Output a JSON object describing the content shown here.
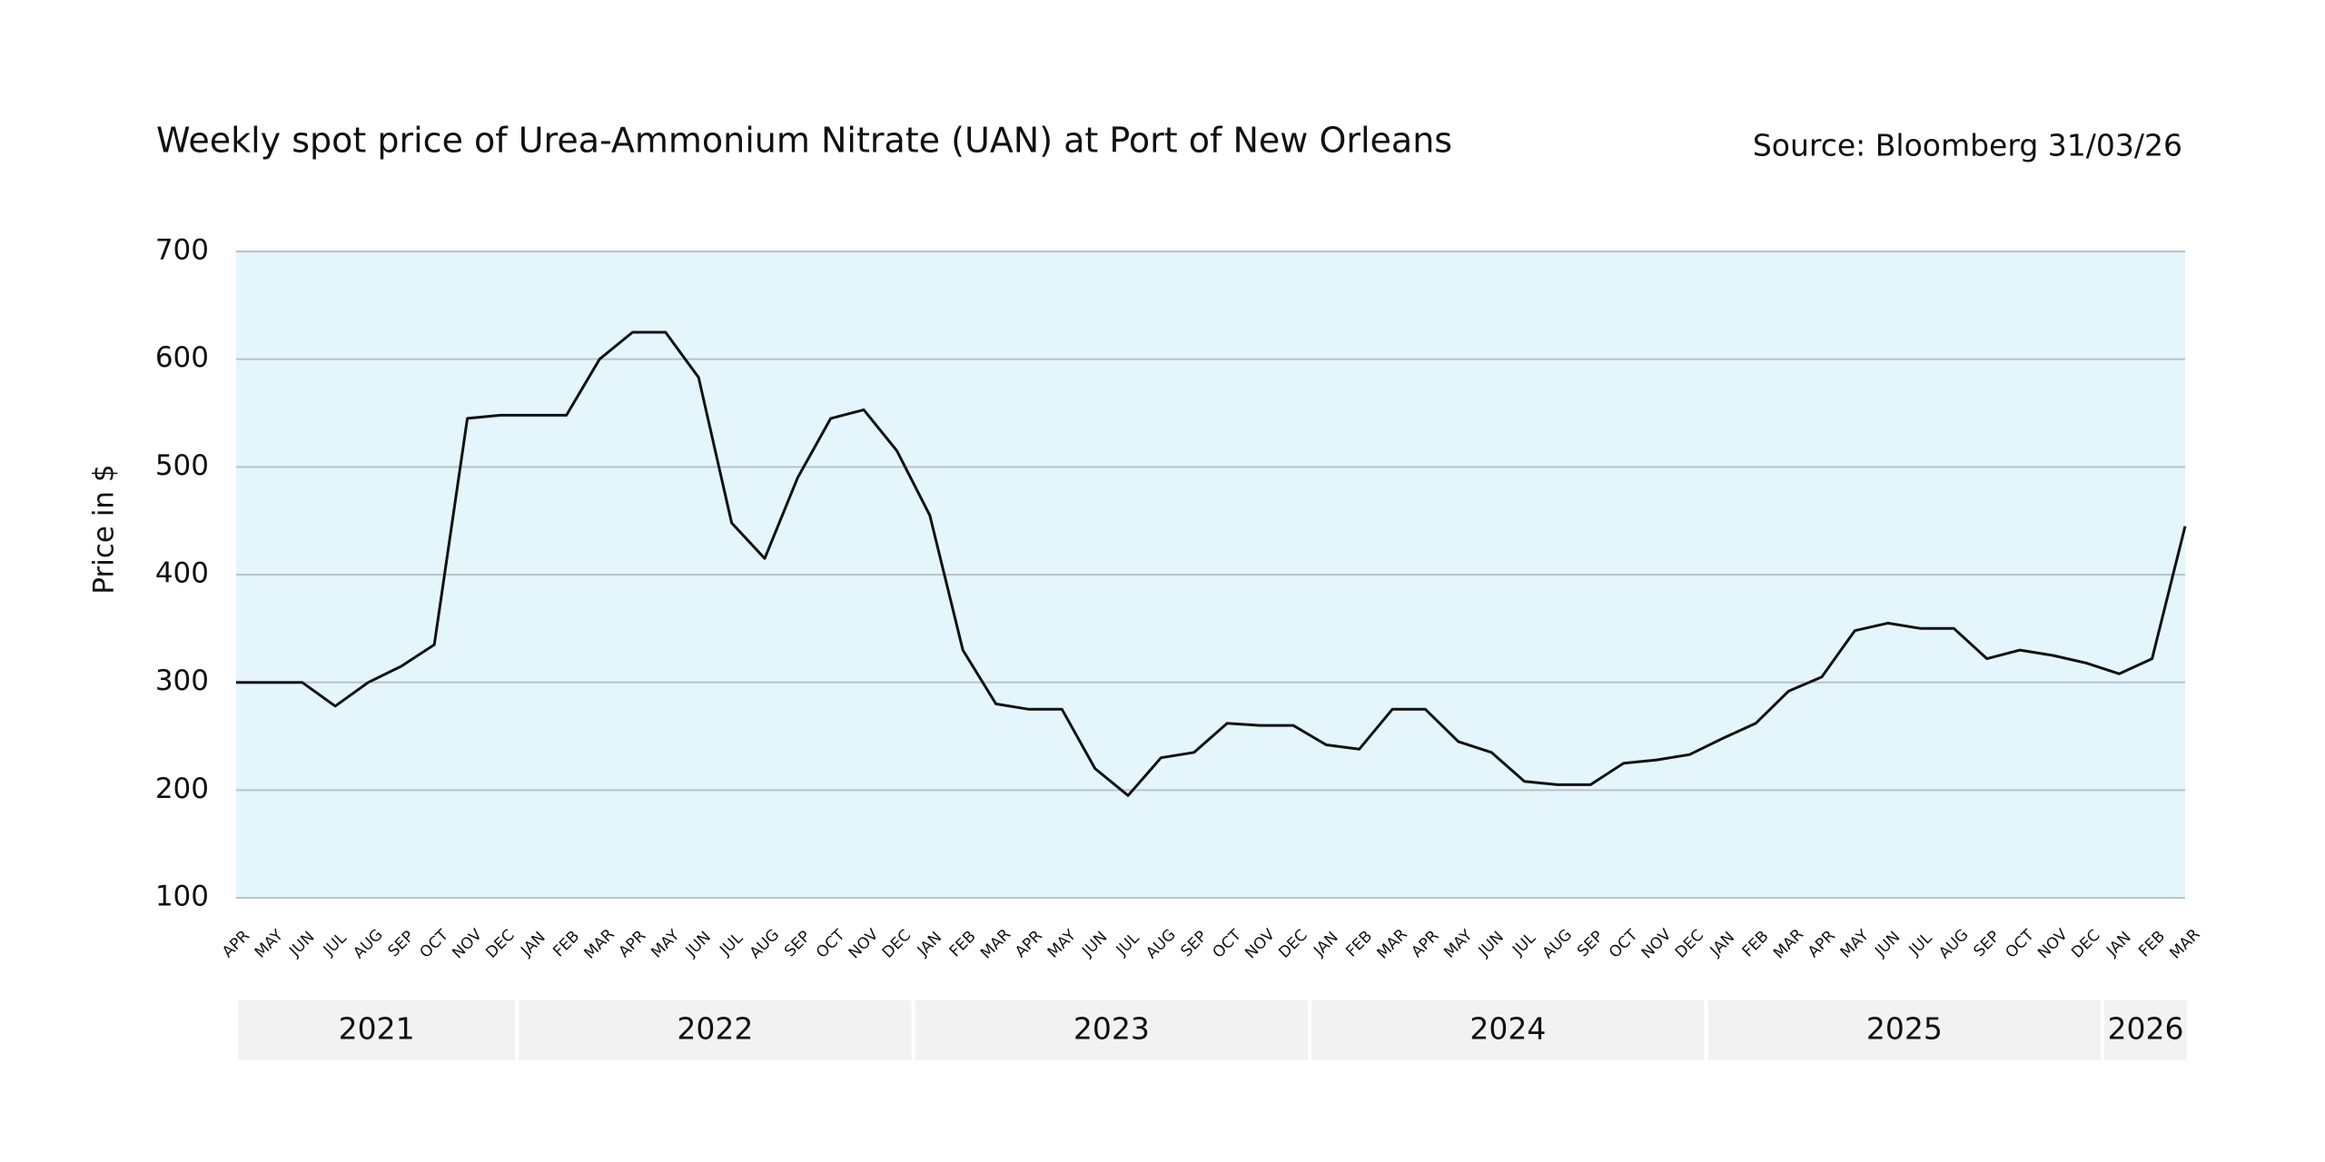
{
  "chart_data": {
    "type": "line",
    "title": "Weekly spot price of Urea-Ammonium Nitrate (UAN) at Port of New Orleans",
    "source": "Source: Bloomberg 31/03/26",
    "y_label": "Price in $",
    "categories": [
      "APR",
      "MAY",
      "JUN",
      "JUL",
      "AUG",
      "SEP",
      "OCT",
      "NOV",
      "DEC",
      "JAN",
      "FEB",
      "MAR",
      "APR",
      "MAY",
      "JUN",
      "JUL",
      "AUG",
      "SEP",
      "OCT",
      "NOV",
      "DEC",
      "JAN",
      "FEB",
      "MAR",
      "APR",
      "MAY",
      "JUN",
      "JUL",
      "AUG",
      "SEP",
      "OCT",
      "NOV",
      "DEC",
      "JAN",
      "FEB",
      "MAR",
      "APR",
      "MAY",
      "JUN",
      "JUL",
      "AUG",
      "SEP",
      "OCT",
      "NOV",
      "DEC",
      "JAN",
      "FEB",
      "MAR",
      "APR",
      "MAY",
      "JUN",
      "JUL",
      "AUG",
      "SEP",
      "OCT",
      "NOV",
      "DEC",
      "JAN",
      "FEB",
      "MAR"
    ],
    "years": [
      "2021",
      "2022",
      "2023",
      "2024",
      "2025",
      "2026"
    ],
    "series": [
      {
        "name": "UAN",
        "color": "#111111",
        "values": [
          300,
          300,
          300,
          278,
          300,
          315,
          335,
          545,
          548,
          548,
          548,
          600,
          625,
          625,
          583,
          448,
          415,
          490,
          545,
          553,
          515,
          455,
          330,
          280,
          275,
          275,
          220,
          195,
          230,
          235,
          262,
          260,
          260,
          242,
          238,
          275,
          275,
          245,
          235,
          208,
          205,
          205,
          225,
          228,
          233,
          248,
          262,
          292,
          305,
          348,
          355,
          350,
          350,
          322,
          330,
          325,
          318,
          308,
          322,
          445
        ]
      }
    ],
    "ylim": [
      100,
      700
    ],
    "yticks": [
      100,
      200,
      300,
      400,
      500,
      600,
      700
    ],
    "grid": true,
    "plot_background": "#e4f5fc",
    "year_band_color": "#f2f2f2"
  }
}
